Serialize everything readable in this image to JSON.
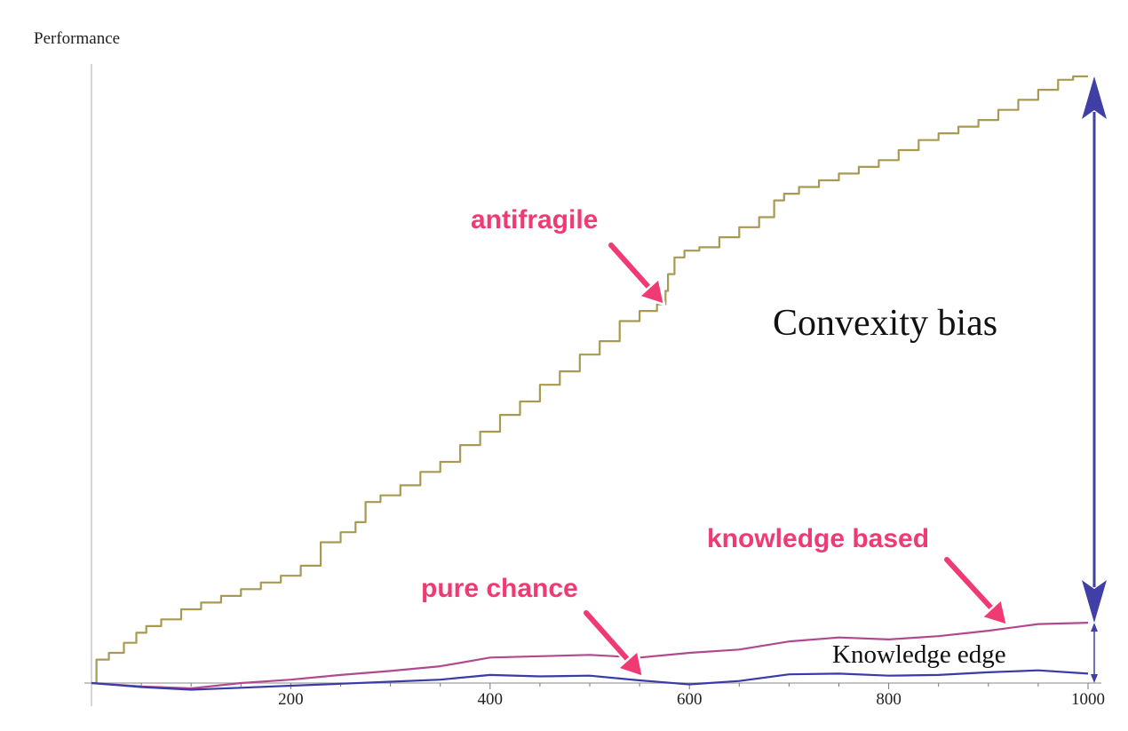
{
  "chart_data": {
    "type": "line",
    "ylabel": "Performance",
    "xlabel": "",
    "xlim": [
      0,
      1000
    ],
    "x_ticks": [
      200,
      400,
      600,
      800,
      1000
    ],
    "y_axis_tick_labels": false,
    "grid": false,
    "series": [
      {
        "name": "antifragile",
        "color": "#a89a52",
        "points": [
          [
            0,
            0
          ],
          [
            10,
            0.035
          ],
          [
            25,
            0.045
          ],
          [
            40,
            0.06
          ],
          [
            50,
            0.075
          ],
          [
            60,
            0.085
          ],
          [
            80,
            0.095
          ],
          [
            100,
            0.11
          ],
          [
            120,
            0.12
          ],
          [
            140,
            0.13
          ],
          [
            160,
            0.14
          ],
          [
            180,
            0.15
          ],
          [
            200,
            0.16
          ],
          [
            220,
            0.175
          ],
          [
            240,
            0.21
          ],
          [
            260,
            0.225
          ],
          [
            270,
            0.24
          ],
          [
            280,
            0.27
          ],
          [
            300,
            0.28
          ],
          [
            320,
            0.295
          ],
          [
            340,
            0.315
          ],
          [
            360,
            0.33
          ],
          [
            380,
            0.355
          ],
          [
            400,
            0.375
          ],
          [
            420,
            0.4
          ],
          [
            440,
            0.42
          ],
          [
            460,
            0.445
          ],
          [
            480,
            0.465
          ],
          [
            500,
            0.49
          ],
          [
            520,
            0.51
          ],
          [
            540,
            0.54
          ],
          [
            560,
            0.555
          ],
          [
            575,
            0.565
          ],
          [
            577,
            0.585
          ],
          [
            580,
            0.61
          ],
          [
            590,
            0.635
          ],
          [
            600,
            0.645
          ],
          [
            620,
            0.65
          ],
          [
            640,
            0.665
          ],
          [
            660,
            0.68
          ],
          [
            680,
            0.695
          ],
          [
            690,
            0.72
          ],
          [
            700,
            0.73
          ],
          [
            720,
            0.74
          ],
          [
            740,
            0.75
          ],
          [
            760,
            0.76
          ],
          [
            780,
            0.77
          ],
          [
            800,
            0.78
          ],
          [
            820,
            0.795
          ],
          [
            840,
            0.81
          ],
          [
            860,
            0.82
          ],
          [
            880,
            0.83
          ],
          [
            900,
            0.84
          ],
          [
            920,
            0.855
          ],
          [
            940,
            0.87
          ],
          [
            960,
            0.885
          ],
          [
            980,
            0.9
          ],
          [
            990,
            0.905
          ],
          [
            1000,
            0.905
          ]
        ]
      },
      {
        "name": "knowledge based",
        "color": "#b04a8e",
        "points": [
          [
            0,
            0
          ],
          [
            50,
            -0.005
          ],
          [
            100,
            -0.008
          ],
          [
            150,
            0.0
          ],
          [
            200,
            0.005
          ],
          [
            250,
            0.012
          ],
          [
            300,
            0.018
          ],
          [
            350,
            0.025
          ],
          [
            400,
            0.038
          ],
          [
            450,
            0.04
          ],
          [
            500,
            0.042
          ],
          [
            550,
            0.038
          ],
          [
            600,
            0.045
          ],
          [
            650,
            0.05
          ],
          [
            700,
            0.062
          ],
          [
            750,
            0.068
          ],
          [
            800,
            0.065
          ],
          [
            850,
            0.07
          ],
          [
            900,
            0.078
          ],
          [
            950,
            0.088
          ],
          [
            1000,
            0.09
          ]
        ]
      },
      {
        "name": "pure chance",
        "color": "#3a3aa8",
        "points": [
          [
            0,
            0
          ],
          [
            50,
            -0.006
          ],
          [
            100,
            -0.01
          ],
          [
            150,
            -0.007
          ],
          [
            200,
            -0.004
          ],
          [
            250,
            -0.001
          ],
          [
            300,
            0.002
          ],
          [
            350,
            0.005
          ],
          [
            400,
            0.012
          ],
          [
            450,
            0.01
          ],
          [
            500,
            0.011
          ],
          [
            550,
            0.004
          ],
          [
            600,
            -0.002
          ],
          [
            650,
            0.003
          ],
          [
            700,
            0.013
          ],
          [
            750,
            0.014
          ],
          [
            800,
            0.011
          ],
          [
            850,
            0.012
          ],
          [
            900,
            0.016
          ],
          [
            950,
            0.019
          ],
          [
            1000,
            0.014
          ]
        ]
      }
    ],
    "annotations": {
      "antifragile": "antifragile",
      "knowledge_based": "knowledge based",
      "pure_chance": "pure chance",
      "convexity_bias": "Convexity bias",
      "knowledge_edge": "Knowledge edge"
    },
    "colors": {
      "callout": "#f03a73",
      "arrow": "#3f3fa5",
      "axis": "#c8c8c8"
    }
  }
}
